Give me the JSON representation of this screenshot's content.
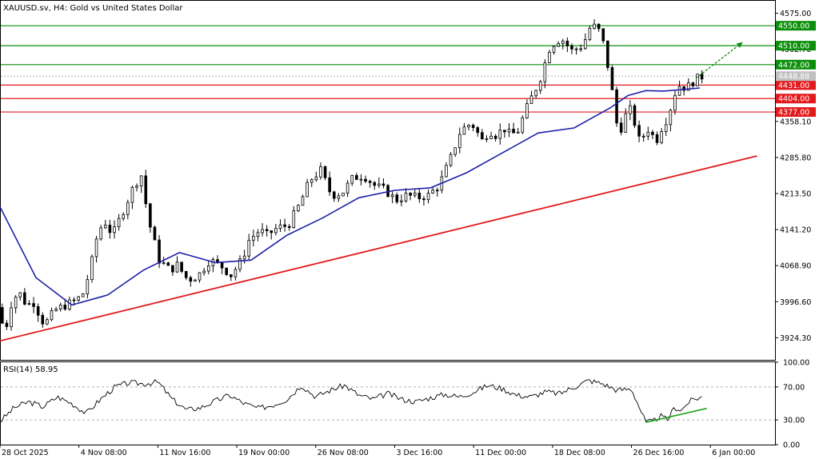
{
  "chart_data": [
    {
      "type": "candlestick",
      "title": "XAUUSD.sv, H4:  Gold vs United States Dollar",
      "ylim": [
        3880,
        4600
      ],
      "y_ticks": [
        "4575.00",
        "4502.70",
        "4430.40",
        "4358.10",
        "4285.80",
        "4213.50",
        "4141.20",
        "4068.90",
        "3996.60",
        "3924.30"
      ],
      "x_ticks": [
        "28 Oct 2025",
        "4 Nov 08:00",
        "11 Nov 16:00",
        "19 Nov 00:00",
        "26 Nov 08:00",
        "3 Dec 16:00",
        "11 Dec 00:00",
        "18 Dec 08:00",
        "26 Dec 16:00",
        "6 Jan 00:00"
      ],
      "current_price": {
        "label": "4448.88",
        "value": 4448.88
      },
      "resistance_levels": [
        {
          "label": "4550.00",
          "value": 4550.0
        },
        {
          "label": "4510.00",
          "value": 4510.0
        },
        {
          "label": "4472.00",
          "value": 4472.0
        }
      ],
      "support_levels": [
        {
          "label": "4431.00",
          "value": 4431.0
        },
        {
          "label": "4404.00",
          "value": 4404.0
        },
        {
          "label": "4377.00",
          "value": 4377.0
        }
      ],
      "trendline": {
        "x": [
          0,
          211
        ],
        "y": [
          3918,
          4289
        ]
      },
      "projection_arrow": {
        "x": [
          194,
          207
        ],
        "y": [
          4445,
          4517
        ]
      },
      "moving_average_path": {
        "x": [
          0,
          10,
          20,
          30,
          40,
          50,
          60,
          70,
          80,
          90,
          100,
          110,
          120,
          130,
          140,
          150,
          160,
          170,
          175,
          180,
          185,
          190,
          195
        ],
        "y": [
          4187,
          4045,
          3990,
          4010,
          4060,
          4095,
          4075,
          4080,
          4130,
          4165,
          4205,
          4220,
          4225,
          4255,
          4295,
          4335,
          4345,
          4385,
          4410,
          4420,
          4419,
          4422,
          4425
        ]
      },
      "price_path": {
        "x": [
          0,
          2,
          4,
          6,
          8,
          10,
          13,
          16,
          19,
          22,
          24,
          26,
          28,
          30,
          32,
          35,
          38,
          40,
          42,
          45,
          48,
          50,
          53,
          56,
          59,
          62,
          65,
          68,
          70,
          73,
          75,
          78,
          81,
          84,
          87,
          90,
          93,
          96,
          99,
          102,
          105,
          108,
          111,
          114,
          117,
          120,
          123,
          126,
          129,
          132,
          135,
          137,
          139,
          141,
          143,
          145,
          148,
          151,
          154,
          157,
          160,
          163,
          165,
          167,
          169,
          171,
          173,
          175,
          176,
          177,
          178,
          179,
          180,
          182,
          183,
          185,
          187,
          188,
          189,
          190,
          192,
          194,
          196
        ],
        "y": [
          3985,
          3935,
          4000,
          4015,
          3990,
          3995,
          3950,
          3980,
          3990,
          4000,
          4015,
          4070,
          4140,
          4155,
          4130,
          4180,
          4230,
          4250,
          4160,
          4080,
          4060,
          4070,
          4040,
          4050,
          4080,
          4070,
          4050,
          4080,
          4120,
          4140,
          4130,
          4145,
          4150,
          4190,
          4240,
          4260,
          4210,
          4215,
          4245,
          4250,
          4230,
          4220,
          4200,
          4210,
          4205,
          4210,
          4230,
          4280,
          4340,
          4355,
          4320,
          4340,
          4330,
          4345,
          4330,
          4340,
          4395,
          4440,
          4510,
          4525,
          4500,
          4510,
          4545,
          4550,
          4510,
          4430,
          4330,
          4370,
          4395,
          4340,
          4370,
          4305,
          4330,
          4350,
          4310,
          4345,
          4370,
          4400,
          4420,
          4430,
          4425,
          4440,
          4448
        ]
      }
    },
    {
      "type": "line",
      "title": "RSI(14) 58.95",
      "ylim": [
        0,
        100
      ],
      "y_ticks": [
        "100.00",
        "70.00",
        "30.00",
        "0.00"
      ],
      "levels": [
        70,
        30
      ],
      "rsi_path": {
        "x": [
          0,
          4,
          8,
          12,
          16,
          20,
          24,
          28,
          32,
          36,
          40,
          44,
          48,
          52,
          56,
          60,
          64,
          68,
          72,
          76,
          80,
          84,
          88,
          92,
          96,
          100,
          104,
          108,
          112,
          116,
          120,
          124,
          128,
          132,
          136,
          140,
          144,
          148,
          152,
          156,
          160,
          164,
          168,
          172,
          176,
          180,
          182,
          184,
          186,
          188,
          190,
          192,
          194,
          196
        ],
        "y": [
          28,
          45,
          52,
          46,
          58,
          50,
          38,
          55,
          70,
          75,
          74,
          76,
          55,
          42,
          45,
          53,
          60,
          50,
          44,
          48,
          55,
          72,
          58,
          66,
          72,
          60,
          55,
          62,
          55,
          52,
          57,
          61,
          58,
          64,
          72,
          68,
          60,
          58,
          64,
          62,
          70,
          78,
          74,
          66,
          68,
          27,
          28,
          35,
          30,
          45,
          42,
          52,
          56,
          58
        ]
      },
      "divergence_line": {
        "x": [
          180,
          197
        ],
        "y": [
          27,
          44
        ]
      }
    }
  ],
  "colors": {
    "price_bars": "#000000",
    "moving_average": "#1e22aa",
    "trendline": "#e31a1c",
    "resistance": "#0a8f0a",
    "support": "#e31a1c",
    "current_price": "#c0c0c0",
    "rsi_line": "#000000",
    "divergence_line": "#1fa51f",
    "rsi_levels": "#b0b0b0"
  }
}
